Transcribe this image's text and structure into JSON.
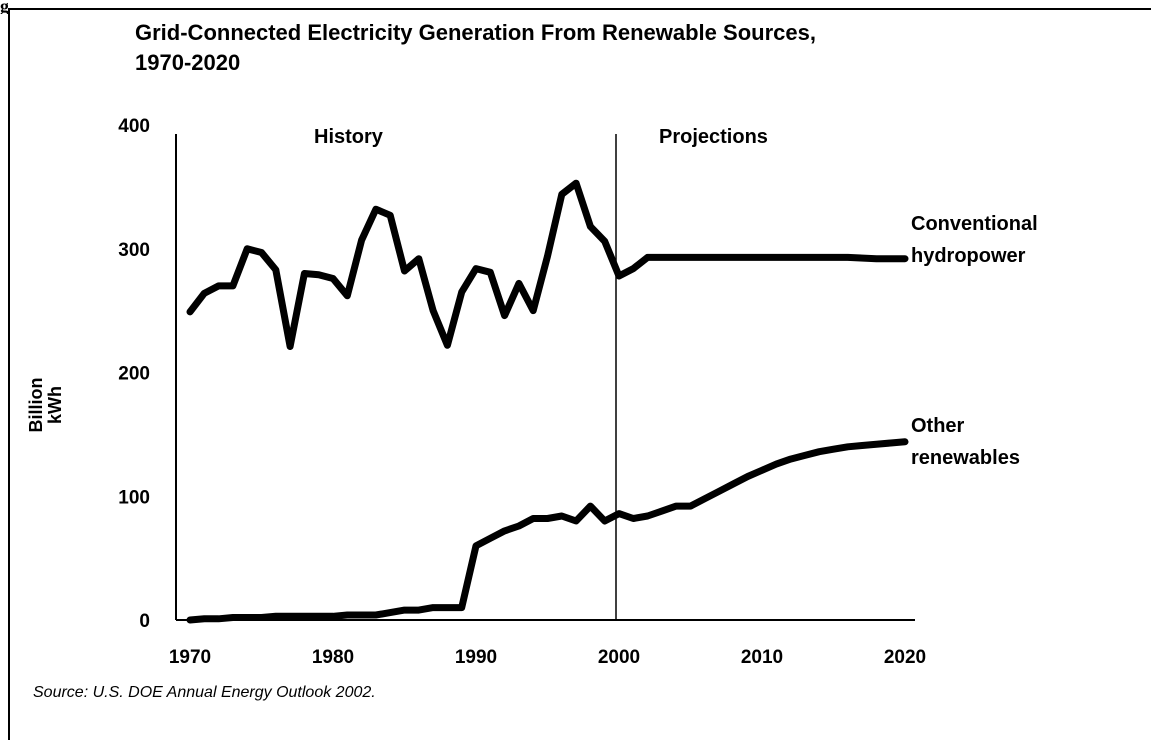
{
  "figure": {
    "corner_label": "g"
  },
  "chart_data": {
    "type": "line",
    "title_line1": "Grid-Connected Electricity Generation From Renewable Sources,",
    "title_line2": "1970-2020",
    "ylabel_line1": "Billion",
    "ylabel_line2": "kWh",
    "xlabel": "",
    "xlim": [
      1970,
      2020
    ],
    "ylim": [
      0,
      400
    ],
    "x_ticks": [
      1970,
      1980,
      1990,
      2000,
      2010,
      2020
    ],
    "y_ticks": [
      0,
      100,
      200,
      300,
      400
    ],
    "grid": false,
    "divider_year": 2000,
    "region_labels": {
      "history": "History",
      "projections": "Projections"
    },
    "series": [
      {
        "name_line1": "Conventional",
        "name_line2": "hydropower",
        "x": [
          1970,
          1971,
          1972,
          1973,
          1974,
          1975,
          1976,
          1977,
          1978,
          1979,
          1980,
          1981,
          1982,
          1983,
          1984,
          1985,
          1986,
          1987,
          1988,
          1989,
          1990,
          1991,
          1992,
          1993,
          1994,
          1995,
          1996,
          1997,
          1998,
          1999,
          2000,
          2001,
          2002,
          2003,
          2004,
          2005,
          2006,
          2008,
          2010,
          2012,
          2014,
          2016,
          2018,
          2020
        ],
        "values": [
          249,
          264,
          270,
          270,
          300,
          297,
          283,
          221,
          280,
          279,
          276,
          262,
          307,
          332,
          327,
          282,
          292,
          250,
          222,
          265,
          284,
          281,
          246,
          272,
          250,
          294,
          344,
          353,
          318,
          306,
          278,
          284,
          293,
          293,
          293,
          293,
          293,
          293,
          293,
          293,
          293,
          293,
          292,
          292
        ]
      },
      {
        "name_line1": "Other",
        "name_line2": "renewables",
        "x": [
          1970,
          1971,
          1972,
          1973,
          1974,
          1975,
          1976,
          1977,
          1978,
          1979,
          1980,
          1981,
          1982,
          1983,
          1984,
          1985,
          1986,
          1987,
          1988,
          1989,
          1990,
          1991,
          1992,
          1993,
          1994,
          1995,
          1996,
          1997,
          1998,
          1999,
          2000,
          2001,
          2002,
          2003,
          2004,
          2005,
          2006,
          2007,
          2008,
          2009,
          2010,
          2011,
          2012,
          2013,
          2014,
          2015,
          2016,
          2017,
          2018,
          2019,
          2020
        ],
        "values": [
          0,
          1,
          1,
          2,
          2,
          2,
          3,
          3,
          3,
          3,
          3,
          4,
          4,
          4,
          6,
          8,
          8,
          10,
          10,
          10,
          60,
          66,
          72,
          76,
          82,
          82,
          84,
          80,
          92,
          80,
          86,
          82,
          84,
          88,
          92,
          92,
          98,
          104,
          110,
          116,
          121,
          126,
          130,
          133,
          136,
          138,
          140,
          141,
          142,
          143,
          144
        ]
      }
    ]
  },
  "source": "Source:  U.S. DOE Annual Energy Outlook 2002."
}
